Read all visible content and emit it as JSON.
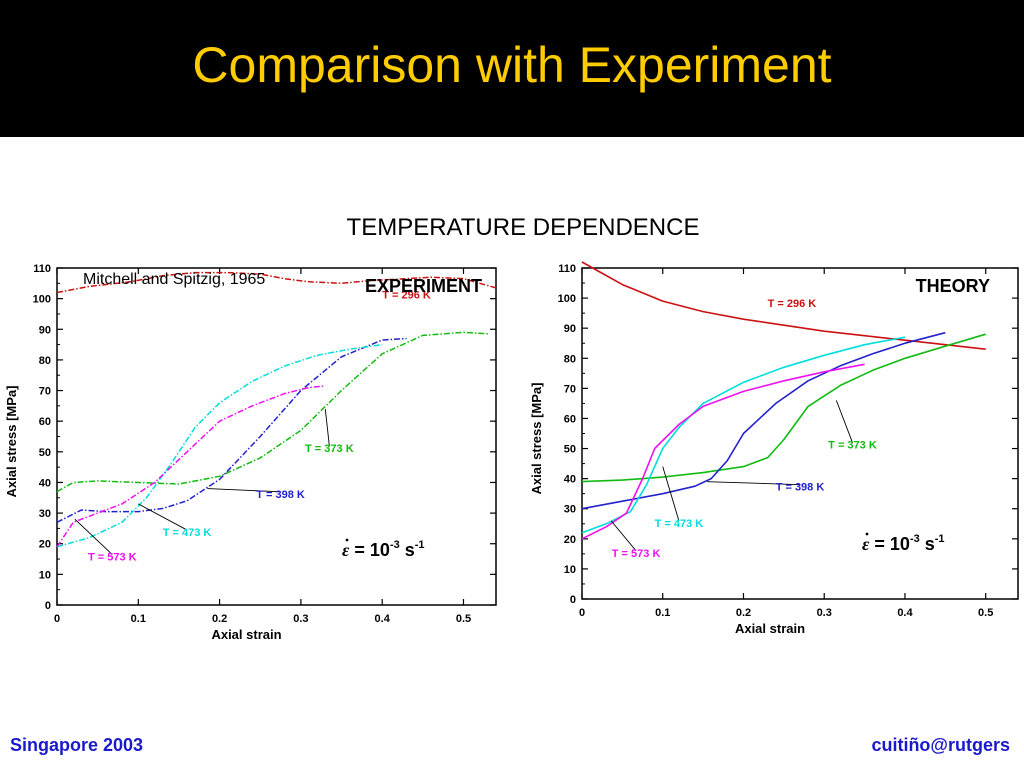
{
  "slide": {
    "title": "Comparison with Experiment",
    "subtitle": "TEMPERATURE DEPENDENCE",
    "footer_left": "Singapore 2003",
    "footer_right": "cuitiño@rutgers",
    "title_color": "#ffcc00",
    "footer_color": "#1a1acc"
  },
  "chart_data": [
    {
      "type": "line",
      "panel_label": "EXPERIMENT",
      "source_note": "Mitchell and Spitzig, 1965",
      "xlabel": "Axial strain",
      "ylabel": "Axial stress [MPa]",
      "xlim": [
        0,
        0.54
      ],
      "ylim": [
        0,
        110
      ],
      "xticks": [
        "0",
        "0.1",
        "0.2",
        "0.3",
        "0.4",
        "0.5"
      ],
      "yticks": [
        "0",
        "10",
        "20",
        "30",
        "40",
        "50",
        "60",
        "70",
        "80",
        "90",
        "100",
        "110"
      ],
      "rate_label": {
        "eps": "ε",
        "base": " = 10",
        "exp": "-3",
        "unit": " s",
        "unit_exp": "-1"
      },
      "series": [
        {
          "name": "T = 296 K",
          "color": "#cc1111",
          "x": [
            0,
            0.04,
            0.09,
            0.13,
            0.17,
            0.21,
            0.25,
            0.28,
            0.31,
            0.35,
            0.39,
            0.43,
            0.46,
            0.5,
            0.54
          ],
          "y": [
            102,
            104,
            105.5,
            107.5,
            108.5,
            108.5,
            108,
            106.5,
            105.5,
            105,
            106,
            106.5,
            107,
            106.5,
            103.5
          ]
        },
        {
          "name": "T = 373 K",
          "color": "#11bb11",
          "x": [
            0,
            0.02,
            0.05,
            0.1,
            0.15,
            0.2,
            0.25,
            0.3,
            0.35,
            0.4,
            0.45,
            0.5,
            0.53
          ],
          "y": [
            37,
            40,
            40.5,
            40,
            39.5,
            42,
            48,
            57,
            70,
            82,
            88,
            89,
            88.5
          ]
        },
        {
          "name": "T = 398 K",
          "color": "#2222cc",
          "x": [
            0,
            0.03,
            0.06,
            0.1,
            0.13,
            0.16,
            0.2,
            0.25,
            0.3,
            0.35,
            0.4,
            0.43
          ],
          "y": [
            27,
            31,
            30.5,
            30.5,
            31.5,
            34,
            41,
            55,
            70,
            81,
            86.5,
            87
          ]
        },
        {
          "name": "T = 473 K",
          "color": "#00dddd",
          "x": [
            0,
            0.04,
            0.08,
            0.11,
            0.14,
            0.17,
            0.2,
            0.24,
            0.28,
            0.32,
            0.36,
            0.4
          ],
          "y": [
            19,
            22,
            27,
            35,
            46,
            58,
            66,
            73,
            78,
            81.5,
            83.5,
            85
          ]
        },
        {
          "name": "T = 573 K",
          "color": "#ee11ee",
          "x": [
            0,
            0.02,
            0.05,
            0.08,
            0.12,
            0.16,
            0.2,
            0.24,
            0.28,
            0.31,
            0.33
          ],
          "y": [
            19,
            27,
            30,
            33,
            40,
            50,
            60,
            65,
            69,
            71,
            71.5
          ]
        }
      ],
      "annotations": [
        {
          "text": "T = 296 K",
          "x": 0.43,
          "y": 100,
          "ax": 0.43,
          "ay": 100,
          "color": "#cc1111"
        },
        {
          "text": "T = 373 K",
          "x": 0.335,
          "y": 50,
          "ax": 0.33,
          "ay": 64,
          "color": "#11bb11"
        },
        {
          "text": "T = 398 K",
          "x": 0.275,
          "y": 35,
          "ax": 0.185,
          "ay": 38,
          "color": "#2222cc"
        },
        {
          "text": "T = 473 K",
          "x": 0.16,
          "y": 22.5,
          "ax": 0.1,
          "ay": 33,
          "color": "#00dddd"
        },
        {
          "text": "T = 573 K",
          "x": 0.068,
          "y": 14.5,
          "ax": 0.022,
          "ay": 28,
          "color": "#ee11ee"
        }
      ]
    },
    {
      "type": "line",
      "panel_label": "THEORY",
      "xlabel": "Axial strain",
      "ylabel": "Axial stress [MPa]",
      "xlim": [
        0,
        0.54
      ],
      "ylim": [
        0,
        110
      ],
      "xticks": [
        "0",
        "0.1",
        "0.2",
        "0.3",
        "0.4",
        "0.5"
      ],
      "yticks": [
        "0",
        "10",
        "20",
        "30",
        "40",
        "50",
        "60",
        "70",
        "80",
        "90",
        "100",
        "110"
      ],
      "rate_label": {
        "eps": "ε",
        "base": " = 10",
        "exp": "-3",
        "unit": " s",
        "unit_exp": "-1"
      },
      "series": [
        {
          "name": "T = 296 K",
          "color": "#cc1111",
          "x": [
            0,
            0.02,
            0.05,
            0.1,
            0.15,
            0.2,
            0.25,
            0.3,
            0.35,
            0.4,
            0.45,
            0.5
          ],
          "y": [
            112,
            109,
            104.5,
            99,
            95.5,
            93,
            91,
            89,
            87.5,
            86,
            84.5,
            83
          ]
        },
        {
          "name": "T = 373 K",
          "color": "#11bb11",
          "x": [
            0,
            0.05,
            0.1,
            0.15,
            0.2,
            0.23,
            0.25,
            0.28,
            0.32,
            0.36,
            0.4,
            0.45,
            0.5
          ],
          "y": [
            39,
            39.5,
            40.5,
            42,
            44,
            47,
            53,
            64,
            71,
            76,
            80,
            84,
            88
          ]
        },
        {
          "name": "T = 398 K",
          "color": "#2222cc",
          "x": [
            0,
            0.05,
            0.1,
            0.14,
            0.16,
            0.18,
            0.2,
            0.24,
            0.28,
            0.32,
            0.36,
            0.4,
            0.45
          ],
          "y": [
            30,
            32.5,
            35,
            37.5,
            40,
            46,
            55,
            65,
            72.5,
            77.5,
            81.5,
            85,
            88.5
          ]
        },
        {
          "name": "T = 473 K",
          "color": "#00dddd",
          "x": [
            0,
            0.03,
            0.06,
            0.08,
            0.1,
            0.12,
            0.15,
            0.2,
            0.25,
            0.3,
            0.35,
            0.4
          ],
          "y": [
            22,
            25,
            29,
            38,
            50,
            57,
            65,
            72,
            77,
            81,
            84.5,
            87
          ]
        },
        {
          "name": "T = 573 K",
          "color": "#ee11ee",
          "x": [
            0,
            0.03,
            0.055,
            0.075,
            0.09,
            0.12,
            0.15,
            0.2,
            0.25,
            0.3,
            0.35
          ],
          "y": [
            20,
            24,
            28.5,
            40,
            50,
            58,
            64,
            69,
            72.5,
            75.5,
            78
          ]
        }
      ],
      "annotations": [
        {
          "text": "T = 296 K",
          "x": 0.26,
          "y": 97,
          "ax": 0.26,
          "ay": 97,
          "color": "#cc1111"
        },
        {
          "text": "T = 373 K",
          "x": 0.335,
          "y": 50,
          "ax": 0.315,
          "ay": 66,
          "color": "#11bb11"
        },
        {
          "text": "T = 398 K",
          "x": 0.27,
          "y": 36,
          "ax": 0.155,
          "ay": 39,
          "color": "#2222cc"
        },
        {
          "text": "T = 473 K",
          "x": 0.12,
          "y": 24,
          "ax": 0.1,
          "ay": 44,
          "color": "#00dddd"
        },
        {
          "text": "T = 573 K",
          "x": 0.067,
          "y": 14,
          "ax": 0.036,
          "ay": 26,
          "color": "#ee11ee"
        }
      ]
    }
  ]
}
